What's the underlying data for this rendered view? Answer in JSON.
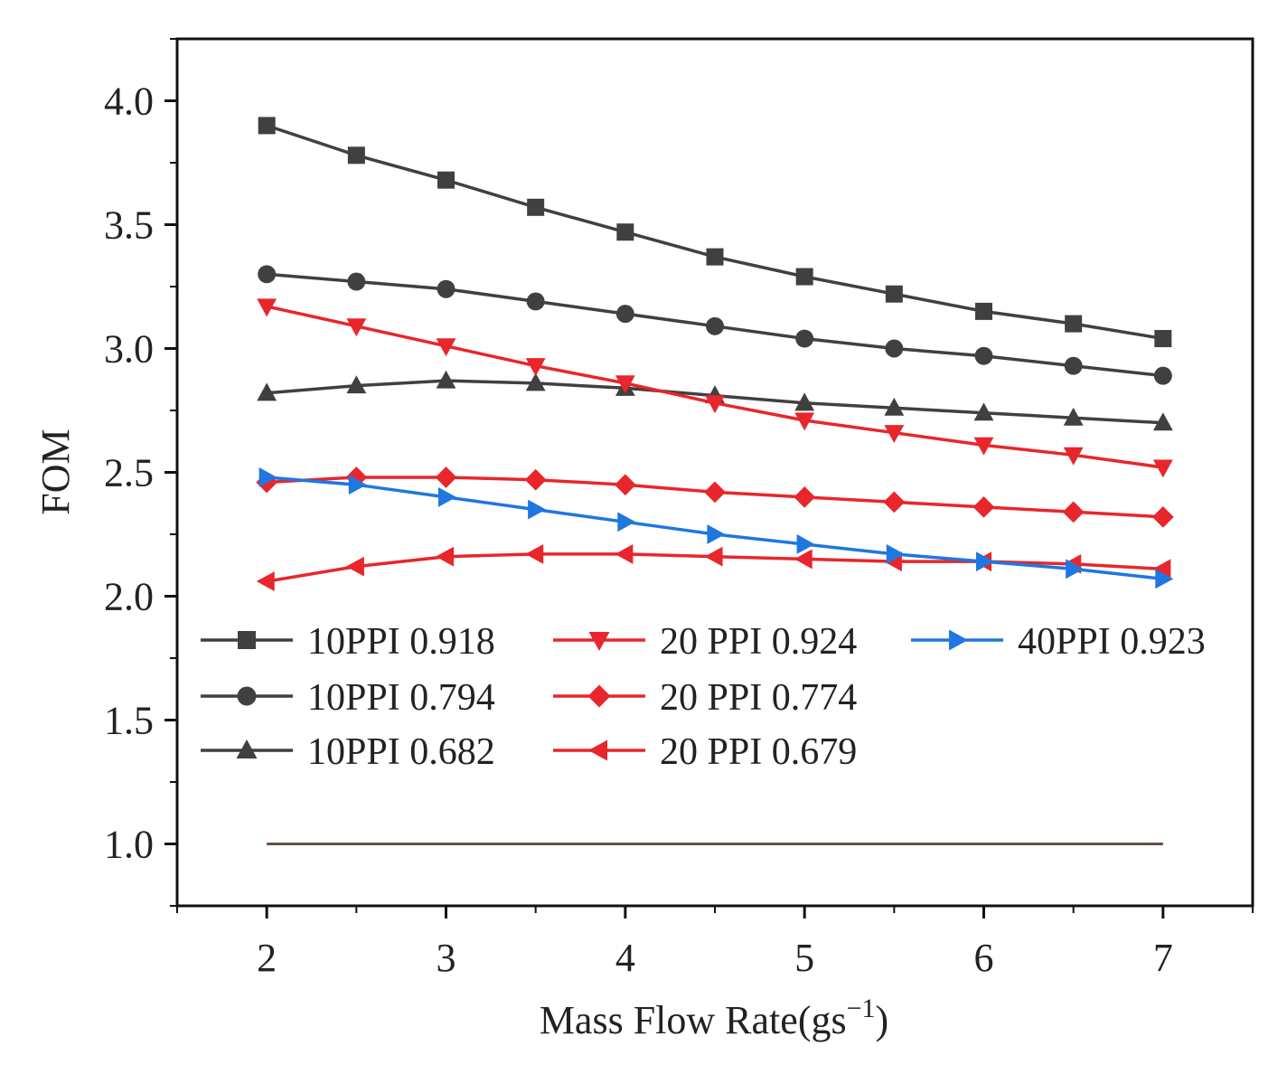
{
  "chart_data": {
    "type": "line",
    "title": "",
    "xlabel": "Mass Flow Rate(gs",
    "xlabel_sup": "−1",
    "xlabel_close": ")",
    "ylabel": "FOM",
    "xlim": [
      1.5,
      7.5
    ],
    "ylim": [
      0.75,
      4.25
    ],
    "xticks": [
      2,
      3,
      4,
      5,
      6,
      7
    ],
    "xtick_labels": [
      "2",
      "3",
      "4",
      "5",
      "6",
      "7"
    ],
    "yticks": [
      1.0,
      1.5,
      2.0,
      2.5,
      3.0,
      3.5,
      4.0
    ],
    "ytick_labels": [
      "1.0",
      "1.5",
      "2.0",
      "2.5",
      "3.0",
      "3.5",
      "4.0"
    ],
    "x": [
      2,
      2.5,
      3,
      3.5,
      4,
      4.5,
      5,
      5.5,
      6,
      6.5,
      7
    ],
    "legend_position": "center-left",
    "series": [
      {
        "name": "10PPI 0.918",
        "color": "#404040",
        "marker": "square",
        "values": [
          3.9,
          3.78,
          3.68,
          3.57,
          3.47,
          3.37,
          3.29,
          3.22,
          3.15,
          3.1,
          3.04
        ]
      },
      {
        "name": "10PPI 0.794",
        "color": "#404040",
        "marker": "circle",
        "values": [
          3.3,
          3.27,
          3.24,
          3.19,
          3.14,
          3.09,
          3.04,
          3.0,
          2.97,
          2.93,
          2.89
        ]
      },
      {
        "name": "10PPI 0.682",
        "color": "#404040",
        "marker": "triangle-up",
        "values": [
          2.82,
          2.85,
          2.87,
          2.86,
          2.84,
          2.81,
          2.78,
          2.76,
          2.74,
          2.72,
          2.7
        ]
      },
      {
        "name": "20 PPI 0.924",
        "color": "#e8262b",
        "marker": "triangle-down",
        "values": [
          3.17,
          3.09,
          3.01,
          2.93,
          2.86,
          2.78,
          2.71,
          2.66,
          2.61,
          2.57,
          2.52
        ]
      },
      {
        "name": "20 PPI 0.774",
        "color": "#e8262b",
        "marker": "diamond",
        "values": [
          2.46,
          2.48,
          2.48,
          2.47,
          2.45,
          2.42,
          2.4,
          2.38,
          2.36,
          2.34,
          2.32
        ]
      },
      {
        "name": "20 PPI 0.679",
        "color": "#e8262b",
        "marker": "triangle-left",
        "values": [
          2.06,
          2.12,
          2.16,
          2.17,
          2.17,
          2.16,
          2.15,
          2.14,
          2.14,
          2.13,
          2.11
        ]
      },
      {
        "name": "40PPI 0.923",
        "color": "#1f77e0",
        "marker": "triangle-right",
        "values": [
          2.48,
          2.45,
          2.4,
          2.35,
          2.3,
          2.25,
          2.21,
          2.17,
          2.14,
          2.11,
          2.07
        ]
      }
    ],
    "reference_line": {
      "y": 1.0,
      "x_start": 2,
      "x_end": 7,
      "color": "#6b4a44"
    }
  }
}
